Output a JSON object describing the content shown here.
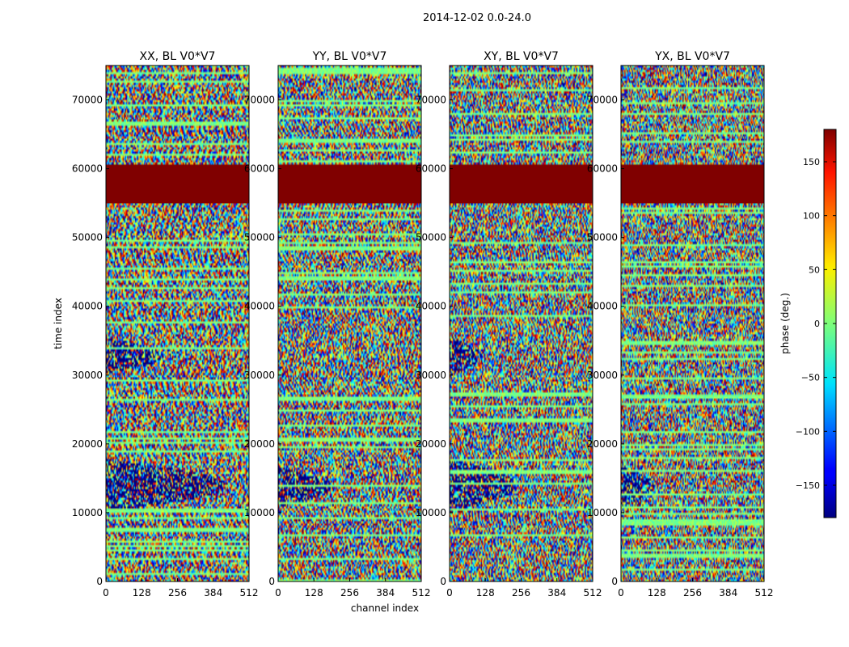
{
  "suptitle": "2014-12-02 0.0-24.0",
  "chart_data": {
    "type": "heatmap",
    "title": "2014-12-02 0.0-24.0",
    "xlabel": "channel index",
    "ylabel": "time index",
    "xlim": [
      0,
      512
    ],
    "ylim": [
      0,
      75000
    ],
    "xticks": [
      0,
      128,
      256,
      384,
      512
    ],
    "yticks": [
      0,
      10000,
      20000,
      30000,
      40000,
      50000,
      60000,
      70000
    ],
    "panels": [
      {
        "title": "XX, BL V0*V7",
        "pol": "XX"
      },
      {
        "title": "YY, BL V0*V7",
        "pol": "YY"
      },
      {
        "title": "XY, BL V0*V7",
        "pol": "XY"
      },
      {
        "title": "YX, BL V0*V7",
        "pol": "YX"
      }
    ],
    "colorbar": {
      "label": "phase (deg.)",
      "range": [
        -180,
        180
      ],
      "ticks": [
        -150,
        -100,
        -50,
        0,
        50,
        100,
        150
      ],
      "colormap": "jet"
    },
    "constant_band": {
      "time_range": [
        55000,
        60500
      ],
      "phase_deg": 180,
      "color": "#800000"
    }
  }
}
